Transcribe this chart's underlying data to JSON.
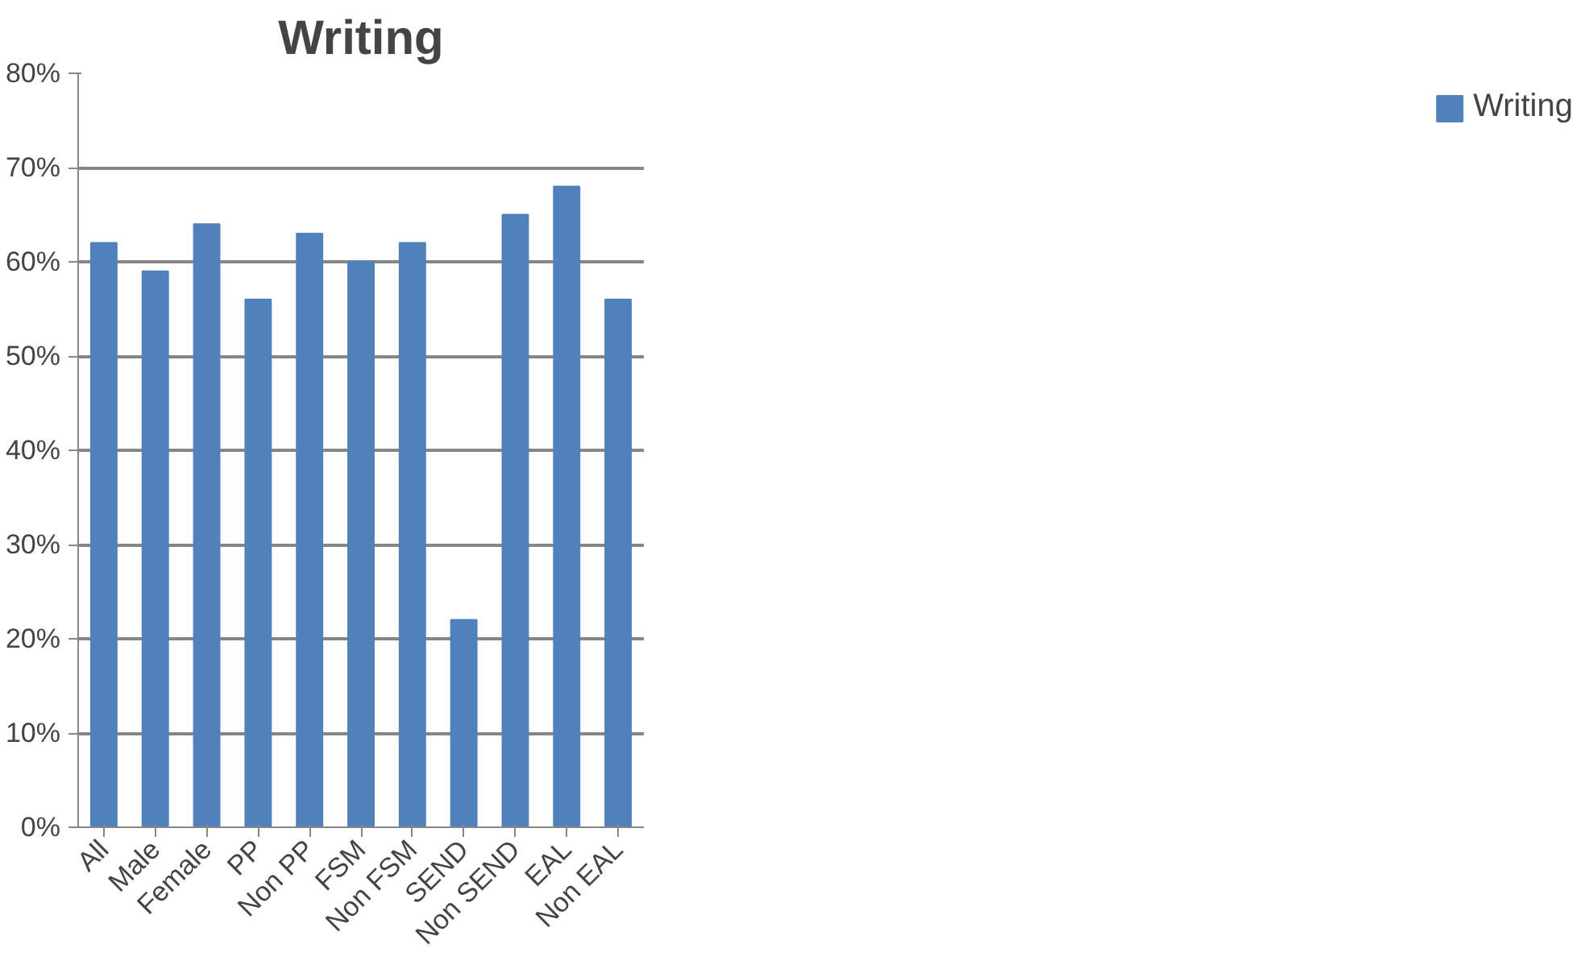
{
  "chart_data": {
    "type": "bar",
    "title": "Writing",
    "categories": [
      "All",
      "Male",
      "Female",
      "PP",
      "Non PP",
      "FSM",
      "Non FSM",
      "SEND",
      "Non SEND",
      "EAL",
      "Non EAL"
    ],
    "series": [
      {
        "name": "Writing",
        "color": "#4f81bd",
        "values": [
          62,
          59,
          64,
          56,
          63,
          60,
          62,
          22,
          65,
          68,
          56
        ]
      }
    ],
    "ylim": [
      0,
      80
    ],
    "yticks": [
      {
        "value": 0,
        "label": "0%"
      },
      {
        "value": 10,
        "label": "10%"
      },
      {
        "value": 20,
        "label": "20%"
      },
      {
        "value": 30,
        "label": "30%"
      },
      {
        "value": 40,
        "label": "40%"
      },
      {
        "value": 50,
        "label": "50%"
      },
      {
        "value": 60,
        "label": "60%"
      },
      {
        "value": 70,
        "label": "70%"
      },
      {
        "value": 80,
        "label": "80%"
      }
    ],
    "grid": "y",
    "legend": "right"
  }
}
